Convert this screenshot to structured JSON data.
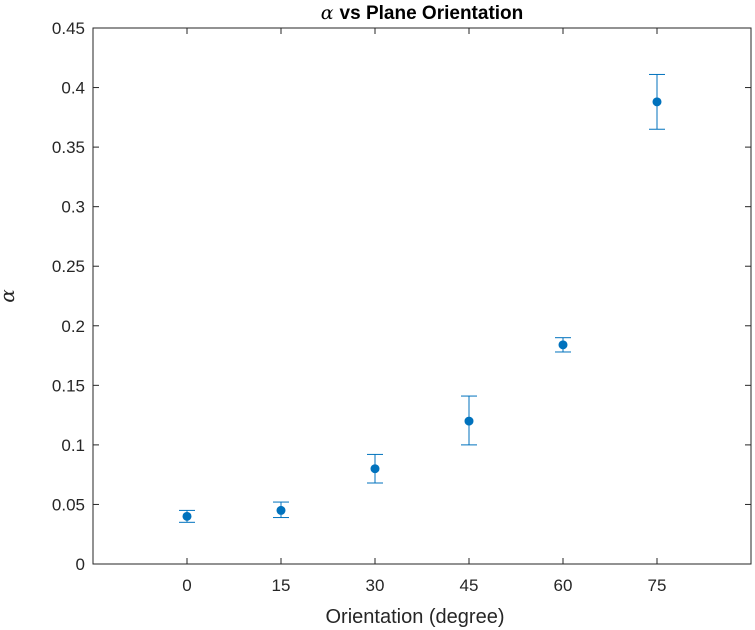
{
  "chart_data": {
    "type": "scatter",
    "title_symbol": "α",
    "title": "vs Plane Orientation",
    "xlabel": "Orientation (degree)",
    "ylabel": "α",
    "xlim": [
      -15,
      90
    ],
    "ylim": [
      0,
      0.45
    ],
    "xticks": [
      0,
      15,
      30,
      45,
      60,
      75
    ],
    "xtick_labels": [
      "0",
      "15",
      "30",
      "45",
      "60",
      "75"
    ],
    "yticks": [
      0,
      0.05,
      0.1,
      0.15,
      0.2,
      0.25,
      0.3,
      0.35,
      0.4,
      0.45
    ],
    "ytick_labels": [
      "0",
      "0.05",
      "0.1",
      "0.15",
      "0.2",
      "0.25",
      "0.3",
      "0.35",
      "0.4",
      "0.45"
    ],
    "grid": false,
    "marker_color": "#0072BD",
    "series": [
      {
        "x": [
          0,
          15,
          30,
          45,
          60,
          75
        ],
        "y": [
          0.04,
          0.045,
          0.08,
          0.12,
          0.184,
          0.388
        ],
        "err_low": [
          0.035,
          0.039,
          0.068,
          0.1,
          0.178,
          0.365
        ],
        "err_high": [
          0.045,
          0.052,
          0.092,
          0.141,
          0.19,
          0.411
        ]
      }
    ]
  }
}
